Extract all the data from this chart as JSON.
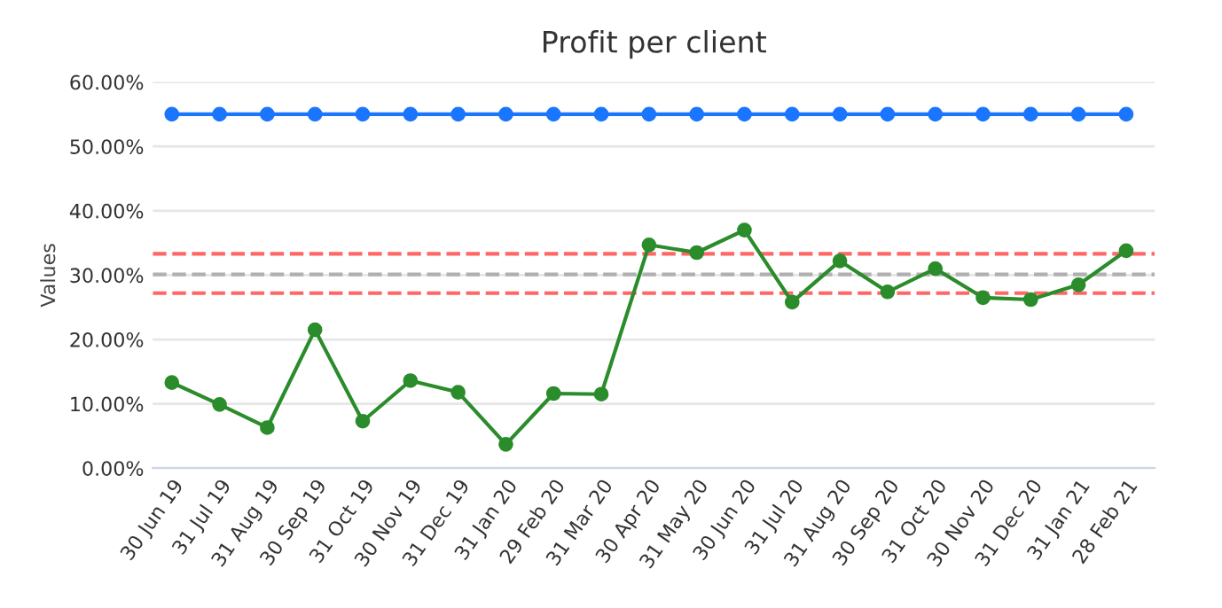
{
  "chart_data": {
    "type": "line",
    "title": "Profit per client",
    "ylabel": "Values",
    "categories": [
      "30 Jun 19",
      "31 Jul 19",
      "31 Aug 19",
      "30 Sep 19",
      "31 Oct 19",
      "30 Nov 19",
      "31 Dec 19",
      "31 Jan 20",
      "29 Feb 20",
      "31 Mar 20",
      "30 Apr 20",
      "31 May 20",
      "30 Jun 20",
      "31 Jul 20",
      "31 Aug 20",
      "30 Sep 20",
      "31 Oct 20",
      "30 Nov 20",
      "31 Dec 20",
      "31 Jan 21",
      "28 Feb 21"
    ],
    "series": [
      {
        "color": "#1a75ff",
        "values": [
          55,
          55,
          55,
          55,
          55,
          55,
          55,
          55,
          55,
          55,
          55,
          55,
          55,
          55,
          55,
          55,
          55,
          55,
          55,
          55,
          55
        ]
      },
      {
        "color": "#2a8c2a",
        "values": [
          13.3,
          9.9,
          6.3,
          21.5,
          7.3,
          13.6,
          11.8,
          3.7,
          11.6,
          11.5,
          34.7,
          33.5,
          37.0,
          25.8,
          32.2,
          27.4,
          31.0,
          26.5,
          26.2,
          28.5,
          33.8
        ]
      }
    ],
    "ylim": [
      0,
      60
    ],
    "yticks": [
      {
        "value": 0,
        "label": "0.00%"
      },
      {
        "value": 10,
        "label": "10.00%"
      },
      {
        "value": 20,
        "label": "20.00%"
      },
      {
        "value": 30,
        "label": "30.00%"
      },
      {
        "value": 40,
        "label": "40.00%"
      },
      {
        "value": 50,
        "label": "50.00%"
      },
      {
        "value": 60,
        "label": "60.00%"
      }
    ],
    "ref_lines": [
      {
        "axis": "y",
        "value": 33.3,
        "color": "#ff6666",
        "line_style": "dashed"
      },
      {
        "axis": "y",
        "value": 30.1,
        "color": "#b0b0b0",
        "line_style": "dashed"
      },
      {
        "axis": "y",
        "value": 27.2,
        "color": "#ff6666",
        "line_style": "dashed"
      }
    ],
    "grid": "y",
    "marker": "circle",
    "line_style": "solid"
  }
}
